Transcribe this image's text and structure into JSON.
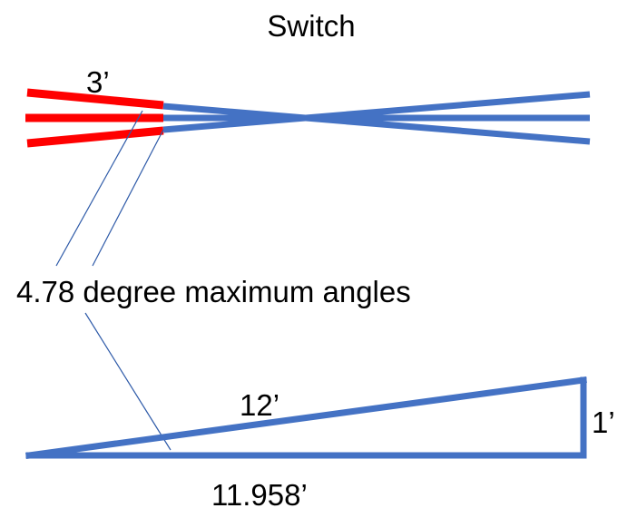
{
  "diagram": {
    "title": "Switch",
    "lengths": {
      "rail_segment": "3’",
      "hypotenuse": "12’",
      "opposite": "1’",
      "adjacent": "11.958’"
    },
    "angle_label": "4.78 degree maximum angles",
    "colors": {
      "track": "#4472C4",
      "switch_segment": "#FF0000",
      "pointer": "#2E5AA8",
      "text": "#000000"
    }
  }
}
